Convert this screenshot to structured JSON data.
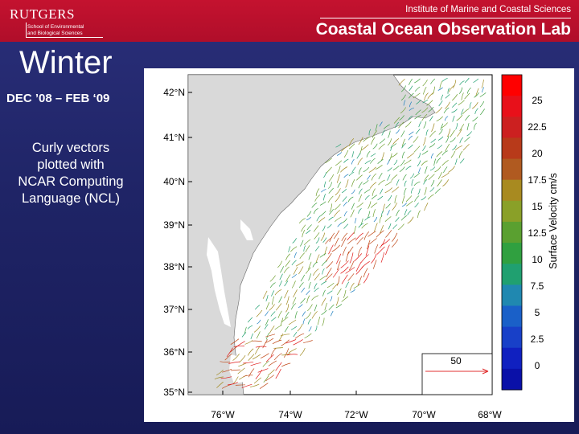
{
  "header": {
    "logo_text": "RUTGERS",
    "logo_subtitle": [
      "School of Environmental",
      "and Biological Sciences"
    ],
    "institute": "Institute of Marine and Coastal Sciences",
    "lab": "Coastal Ocean Observation Lab"
  },
  "slide": {
    "title": "Winter",
    "date_range": "DEC ’08 – FEB ‘09",
    "description": [
      "Curly vectors",
      "plotted with",
      "NCAR Computing",
      "Language (NCL)"
    ]
  },
  "map": {
    "lat_labels": [
      "42°N",
      "41°N",
      "40°N",
      "39°N",
      "38°N",
      "37°N",
      "36°N",
      "35°N"
    ],
    "lon_labels": [
      "76°W",
      "74°W",
      "72°W",
      "70°W",
      "68°W"
    ],
    "reference_vector_label": "50",
    "colorbar_title": "Surface Velocity cm/s",
    "colorbar_ticks": [
      "25",
      "22.5",
      "20",
      "17.5",
      "15",
      "12.5",
      "10",
      "7.5",
      "5",
      "2.5",
      "0"
    ],
    "colorbar_colors": [
      "#ff0000",
      "#e8101a",
      "#cc2020",
      "#b83a1a",
      "#b05a20",
      "#a88a20",
      "#8aa028",
      "#5aa030",
      "#30a040",
      "#20a070",
      "#2088b0",
      "#1a60c8",
      "#1840c8",
      "#1020c0",
      "#0a10a8"
    ],
    "land_color": "#d9d9d9"
  }
}
